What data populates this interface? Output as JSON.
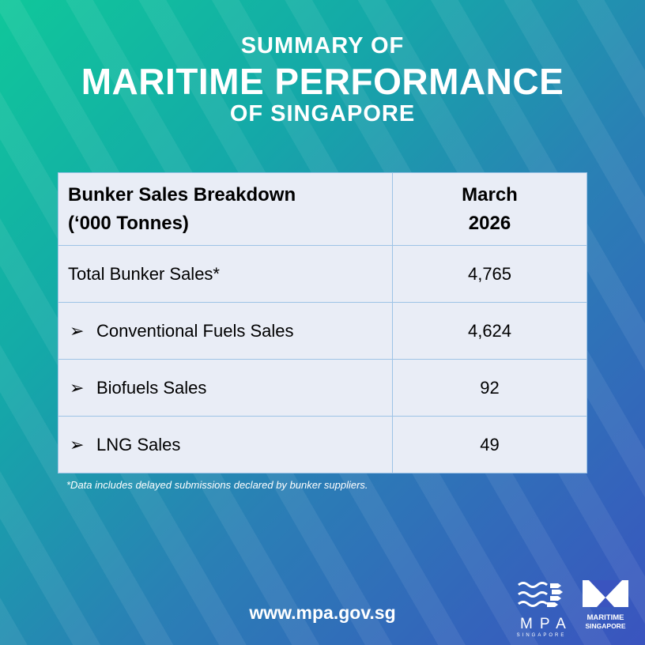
{
  "header": {
    "line1": "SUMMARY OF",
    "line2": "MARITIME PERFORMANCE",
    "line3": "OF SINGAPORE"
  },
  "table": {
    "header": {
      "label": "Bunker Sales Breakdown",
      "unit": "(‘000 Tonnes)",
      "month": "March",
      "year": "2026"
    },
    "rows": [
      {
        "label": "Total Bunker Sales*",
        "value": "4,765",
        "bullet": false
      },
      {
        "label": "Conventional Fuels Sales",
        "value": "4,624",
        "bullet": true
      },
      {
        "label": "Biofuels Sales",
        "value": "92",
        "bullet": true
      },
      {
        "label": "LNG Sales",
        "value": "49",
        "bullet": true
      }
    ],
    "bullet_glyph": "➢"
  },
  "footnote": "*Data includes delayed submissions declared by bunker suppliers.",
  "url": "www.mpa.gov.sg",
  "logos": {
    "mpa": {
      "name": "MPA",
      "sub": "SINGAPORE"
    },
    "maritime_singapore": {
      "line1": "MARITIME",
      "line2": "SINGAPORE"
    }
  },
  "colors": {
    "gradient_start": "#10c79a",
    "gradient_end": "#3a54bf",
    "table_bg": "#e9edf6",
    "table_border": "#9dc3e6"
  }
}
